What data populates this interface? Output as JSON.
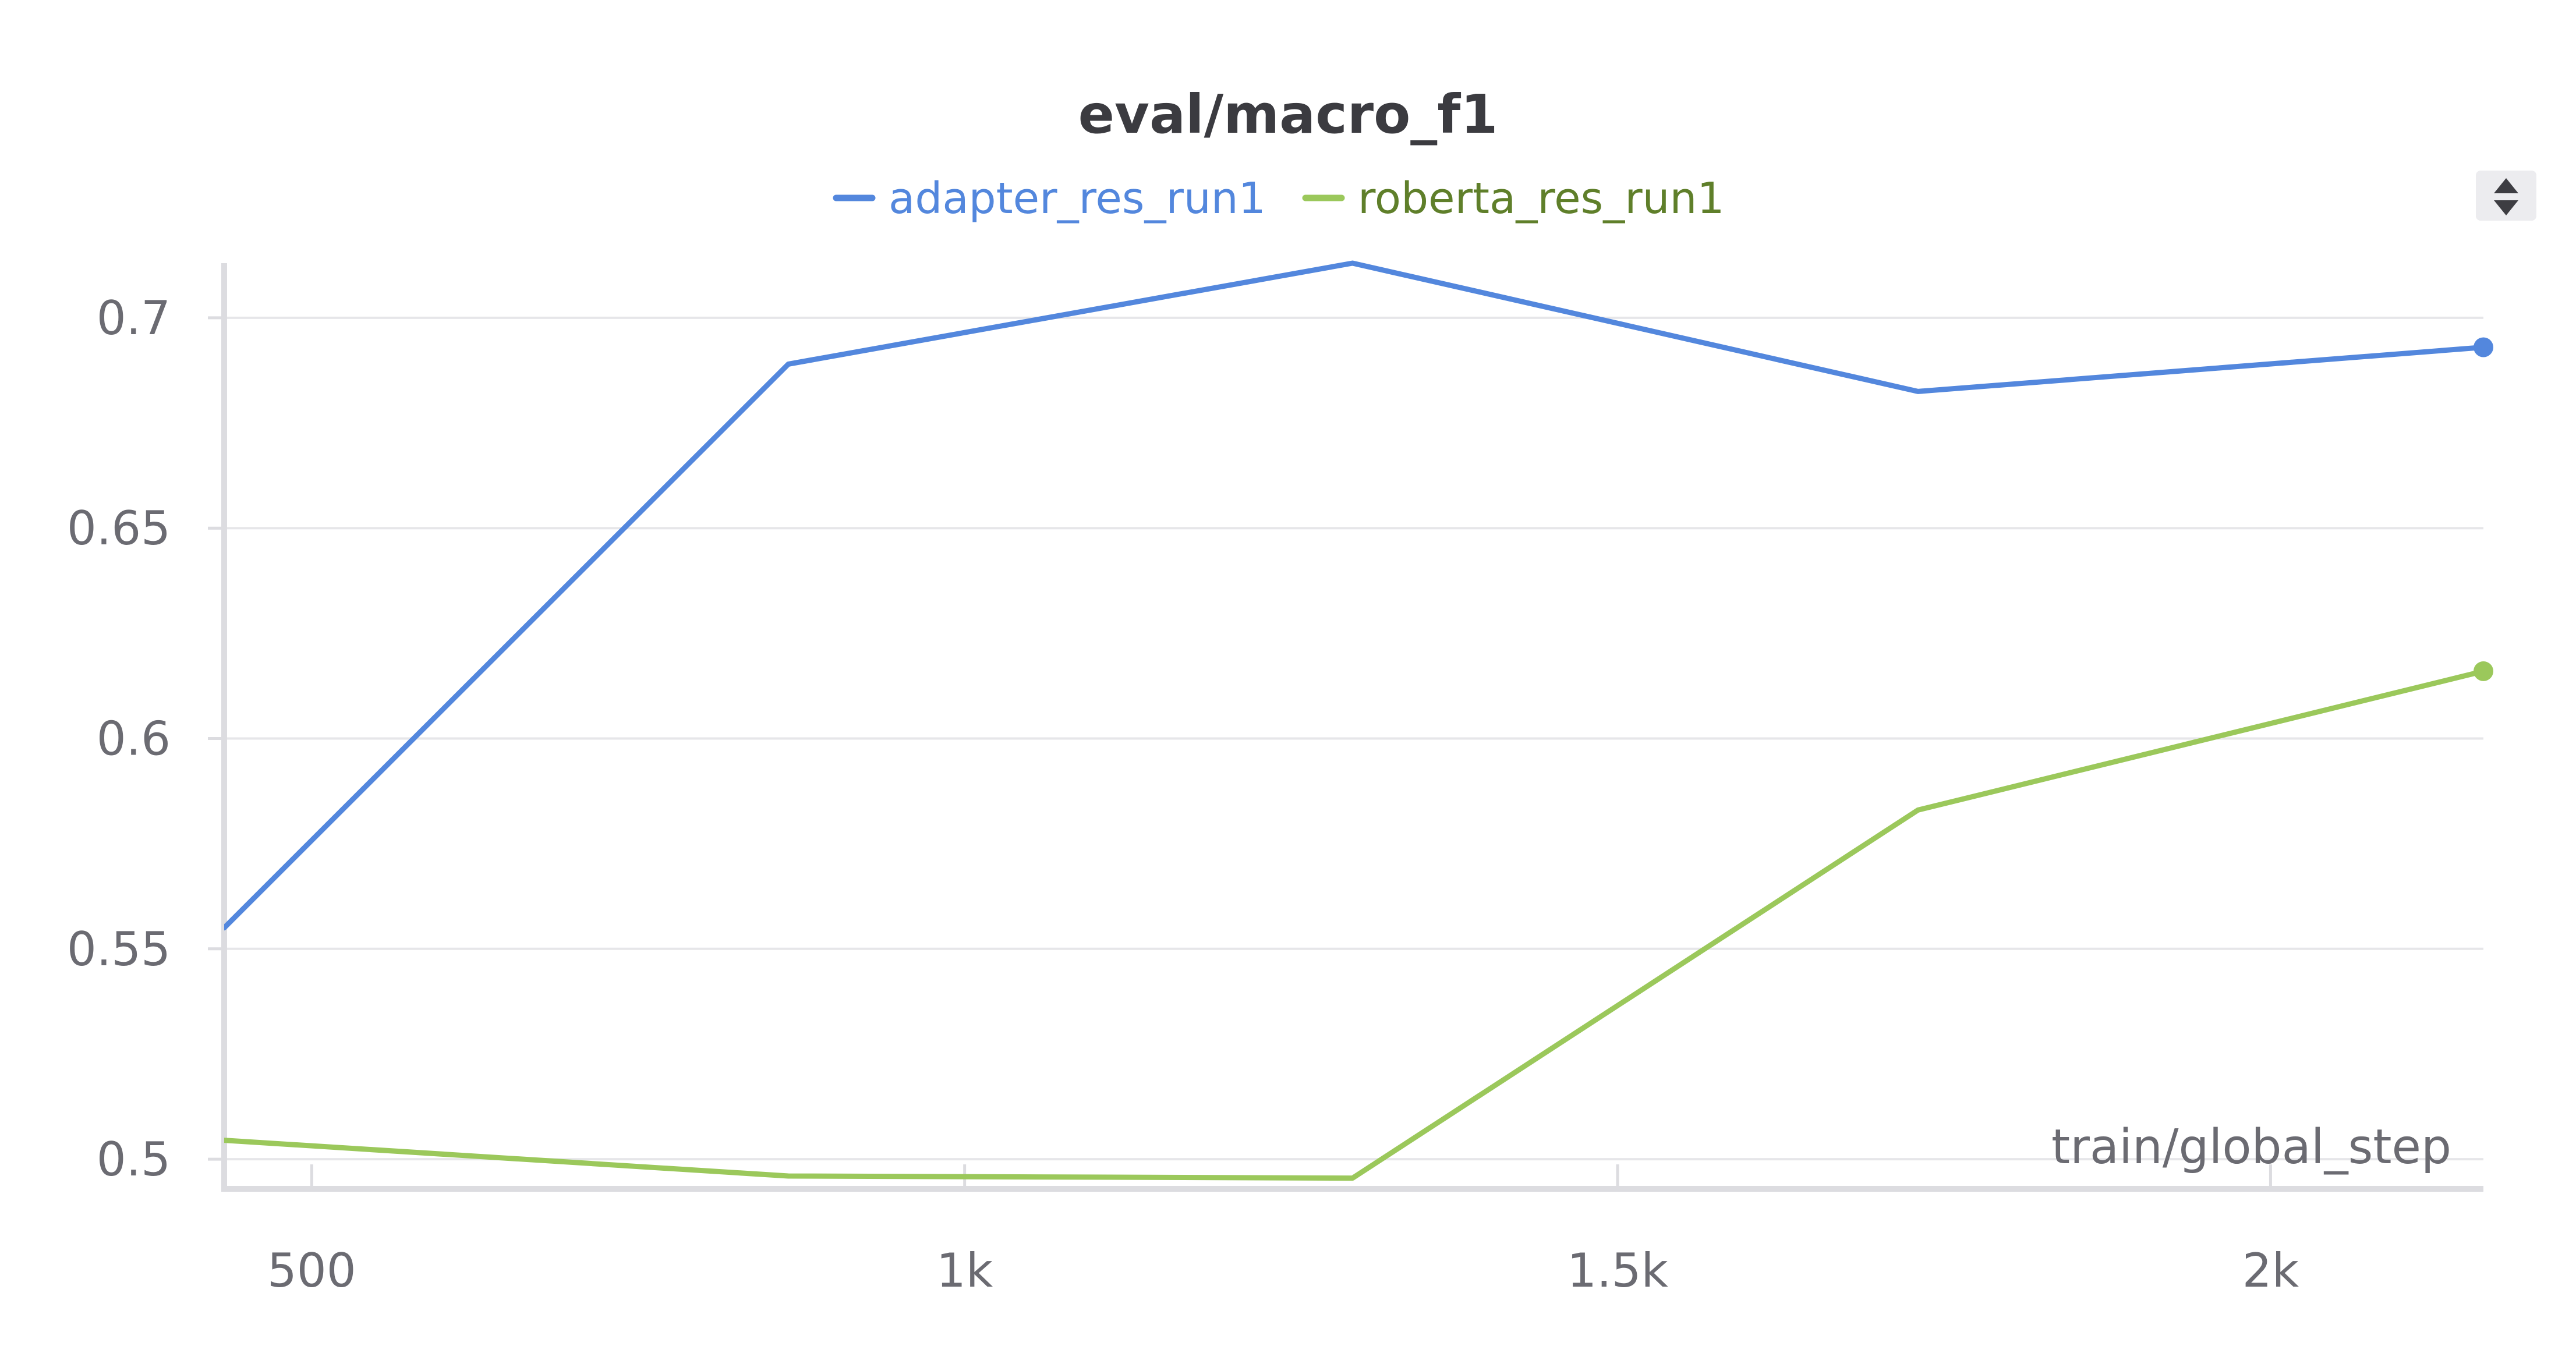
{
  "chart_data": {
    "type": "line",
    "title": "eval/macro_f1",
    "xlabel": "train/global_step",
    "ylabel": "",
    "xlim": [
      433,
      2163
    ],
    "ylim": [
      0.496,
      0.713
    ],
    "x_ticks": [
      {
        "value": 500,
        "label": "500"
      },
      {
        "value": 1000,
        "label": "1k"
      },
      {
        "value": 1500,
        "label": "1.5k"
      },
      {
        "value": 2000,
        "label": "2k"
      }
    ],
    "y_ticks": [
      {
        "value": 0.5,
        "label": "0.5"
      },
      {
        "value": 0.55,
        "label": "0.55"
      },
      {
        "value": 0.6,
        "label": "0.6"
      },
      {
        "value": 0.65,
        "label": "0.65"
      },
      {
        "value": 0.7,
        "label": "0.7"
      }
    ],
    "grid": true,
    "legend_position": "top-center",
    "series": [
      {
        "name": "adapter_res_run1",
        "color": "#5387dd",
        "x": [
          433,
          865,
          1297,
          1730,
          2163
        ],
        "y": [
          0.555,
          0.689,
          0.713,
          0.6825,
          0.693
        ]
      },
      {
        "name": "roberta_res_run1",
        "color": "#9bc85b",
        "legend_text_color": "#5f7f2a",
        "x": [
          433,
          865,
          1297,
          1730,
          2163
        ],
        "y": [
          0.5045,
          0.496,
          0.4955,
          0.583,
          0.616
        ]
      }
    ]
  },
  "controls": {
    "scroll_icon": "up-down-arrows-icon"
  }
}
